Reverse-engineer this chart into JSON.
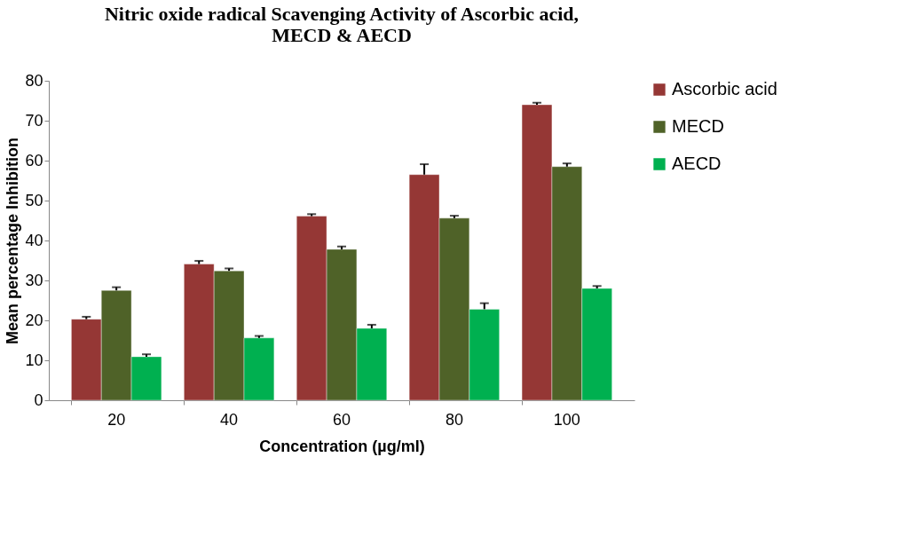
{
  "chart_data": {
    "type": "bar",
    "title": [
      "Nitric oxide radical Scavenging  Activity of Ascorbic acid,",
      "MECD &  AECD"
    ],
    "xlabel": "Concentration (µg/ml)",
    "ylabel": "Mean percentage Inhibition",
    "categories": [
      "20",
      "40",
      "60",
      "80",
      "100"
    ],
    "series": [
      {
        "name": "Ascorbic acid",
        "color": "#953735",
        "values": [
          20.3,
          34.1,
          46.1,
          56.5,
          74.0
        ],
        "errors": [
          [
            20.3,
            20.9
          ],
          [
            34.1,
            34.9
          ],
          [
            46.1,
            46.6
          ],
          [
            56.5,
            59.1
          ],
          [
            74.0,
            74.5
          ]
        ]
      },
      {
        "name": "MECD",
        "color": "#4f6228",
        "values": [
          27.5,
          32.4,
          37.8,
          45.6,
          58.5
        ],
        "errors": [
          [
            27.5,
            28.3
          ],
          [
            32.4,
            33.0
          ],
          [
            37.8,
            38.5
          ],
          [
            45.6,
            46.2
          ],
          [
            58.5,
            59.3
          ]
        ]
      },
      {
        "name": "AECD",
        "color": "#00b050",
        "values": [
          10.9,
          15.6,
          18.0,
          22.8,
          28.0
        ],
        "errors": [
          [
            10.9,
            11.5
          ],
          [
            15.6,
            16.1
          ],
          [
            18.0,
            18.9
          ],
          [
            22.8,
            24.3
          ],
          [
            28.0,
            28.6
          ]
        ]
      }
    ],
    "ylim": [
      0,
      80
    ],
    "yticks": [
      0,
      10,
      20,
      30,
      40,
      50,
      60,
      70,
      80
    ],
    "grid": false,
    "legend": "right"
  }
}
